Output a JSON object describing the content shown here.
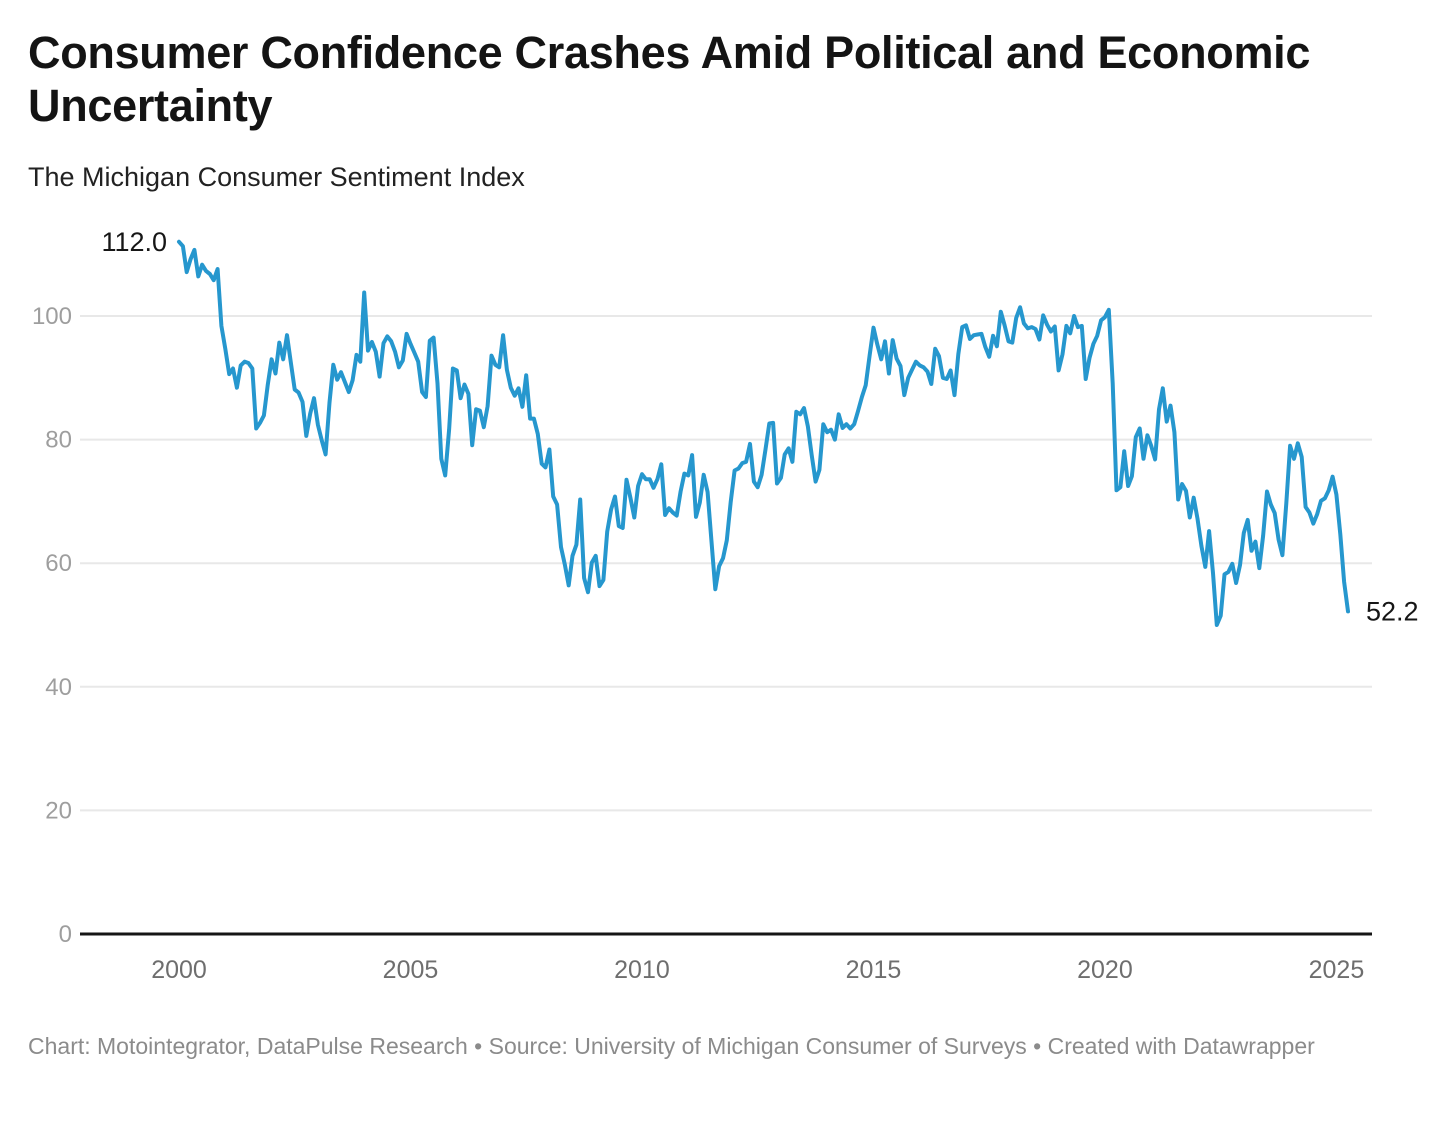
{
  "header": {
    "title": "Consumer Confidence Crashes Amid Political and Economic Uncertainty",
    "subtitle": "The Michigan Consumer Sentiment Index"
  },
  "footer": {
    "text": "Chart: Motointegrator, DataPulse Research • Source: University of Michigan Consumer of Surveys • Created with Datawrapper"
  },
  "colors": {
    "line": "#2697CE",
    "grid": "#e8e8e8",
    "axis": "#161616",
    "y_tick_text": "#9e9e9e",
    "x_tick_text": "#6e6e6e",
    "annotation_text": "#161616"
  },
  "chart_data": {
    "type": "line",
    "title": "Consumer Confidence Crashes Amid Political and Economic Uncertainty",
    "subtitle": "The Michigan Consumer Sentiment Index",
    "series_name": "Michigan Consumer Sentiment Index",
    "frequency": "monthly",
    "x_start": {
      "year": 2000,
      "month": 1
    },
    "x_end": {
      "year": 2025,
      "month": 4
    },
    "x_tick_years": [
      2000,
      2005,
      2010,
      2015,
      2020,
      2025
    ],
    "y_ticks": [
      0,
      20,
      40,
      60,
      80,
      100
    ],
    "ylim": [
      0,
      118
    ],
    "xlim_years": [
      2000.0,
      2025.25
    ],
    "grid": "horizontal",
    "legend": "none",
    "annotations": {
      "start_label": "112.0",
      "end_label": "52.2"
    },
    "values": [
      112.0,
      111.3,
      107.1,
      109.2,
      110.7,
      106.4,
      108.3,
      107.3,
      106.8,
      105.8,
      107.6,
      98.4,
      94.7,
      90.6,
      91.5,
      88.4,
      92.0,
      92.6,
      92.4,
      91.5,
      81.8,
      82.7,
      83.9,
      88.8,
      93.0,
      90.7,
      95.7,
      93.0,
      96.9,
      92.4,
      88.1,
      87.6,
      86.1,
      80.6,
      84.2,
      86.7,
      82.4,
      79.9,
      77.6,
      86.0,
      92.1,
      89.7,
      90.9,
      89.3,
      87.7,
      89.6,
      93.7,
      92.6,
      103.8,
      94.4,
      95.8,
      94.2,
      90.2,
      95.6,
      96.7,
      95.9,
      94.2,
      91.7,
      92.8,
      97.1,
      95.5,
      94.1,
      92.6,
      87.7,
      86.9,
      96.0,
      96.5,
      89.1,
      76.9,
      74.2,
      81.6,
      91.5,
      91.2,
      86.7,
      88.9,
      87.4,
      79.1,
      84.9,
      84.7,
      82.0,
      85.4,
      93.6,
      92.1,
      91.7,
      96.9,
      91.3,
      88.4,
      87.1,
      88.3,
      85.3,
      90.4,
      83.4,
      83.4,
      80.9,
      76.1,
      75.5,
      78.4,
      70.8,
      69.5,
      62.6,
      59.8,
      56.4,
      61.2,
      63.0,
      70.3,
      57.6,
      55.3,
      60.1,
      61.2,
      56.3,
      57.3,
      65.1,
      68.7,
      70.8,
      66.0,
      65.7,
      73.5,
      70.6,
      67.4,
      72.5,
      74.4,
      73.6,
      73.6,
      72.2,
      73.6,
      76.0,
      67.8,
      68.9,
      68.2,
      67.7,
      71.6,
      74.5,
      74.2,
      77.5,
      67.5,
      69.8,
      74.3,
      71.5,
      63.7,
      55.8,
      59.5,
      60.8,
      63.7,
      69.9,
      75.0,
      75.3,
      76.2,
      76.4,
      79.3,
      73.2,
      72.3,
      74.3,
      78.3,
      82.6,
      82.7,
      72.9,
      73.8,
      77.6,
      78.6,
      76.4,
      84.5,
      84.1,
      85.1,
      82.1,
      77.5,
      73.2,
      75.1,
      82.5,
      81.2,
      81.6,
      80.0,
      84.1,
      81.9,
      82.5,
      81.8,
      82.5,
      84.6,
      86.9,
      88.8,
      93.6,
      98.1,
      95.4,
      93.0,
      95.9,
      90.7,
      96.1,
      93.1,
      91.9,
      87.2,
      90.0,
      91.3,
      92.6,
      92.0,
      91.7,
      91.0,
      89.0,
      94.7,
      93.5,
      90.0,
      89.8,
      91.2,
      87.2,
      93.8,
      98.2,
      98.5,
      96.3,
      96.9,
      97.0,
      97.1,
      95.0,
      93.4,
      96.8,
      95.1,
      100.7,
      98.5,
      95.9,
      95.7,
      99.7,
      101.4,
      98.8,
      98.0,
      98.2,
      97.9,
      96.2,
      100.1,
      98.6,
      97.5,
      98.3,
      91.2,
      93.8,
      98.4,
      97.2,
      100.0,
      98.2,
      98.4,
      89.8,
      93.2,
      95.5,
      96.8,
      99.3,
      99.8,
      101.0,
      89.1,
      71.8,
      72.3,
      78.1,
      72.5,
      74.1,
      80.4,
      81.8,
      76.9,
      80.7,
      79.0,
      76.8,
      84.9,
      88.3,
      82.9,
      85.5,
      81.2,
      70.3,
      72.8,
      71.7,
      67.4,
      70.6,
      67.2,
      62.8,
      59.4,
      65.2,
      58.4,
      50.0,
      51.5,
      58.2,
      58.6,
      59.9,
      56.8,
      59.7,
      64.9,
      67.0,
      62.0,
      63.5,
      59.2,
      64.4,
      71.6,
      69.5,
      68.1,
      63.8,
      61.3,
      69.7,
      79.0,
      76.9,
      79.4,
      77.2,
      69.1,
      68.2,
      66.4,
      67.9,
      70.1,
      70.5,
      71.8,
      74.0,
      71.1,
      64.7,
      57.0,
      52.2
    ]
  }
}
